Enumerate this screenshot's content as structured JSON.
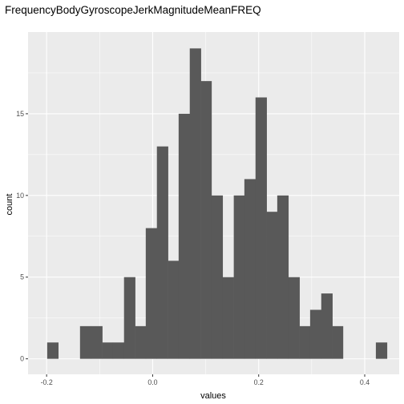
{
  "chart_data": {
    "type": "bar",
    "title": "FrequencyBodyGyroscopeJerkMagnitudeMeanFREQ",
    "xlabel": "values",
    "ylabel": "count",
    "xlim": [
      -0.235,
      0.465
    ],
    "ylim": [
      -0.95,
      20
    ],
    "xticks": [
      -0.2,
      0.0,
      0.2,
      0.4
    ],
    "xtick_labels": [
      "-0.2",
      "0.0",
      "0.2",
      "0.4"
    ],
    "yticks": [
      0,
      5,
      10,
      15
    ],
    "ytick_labels": [
      "0",
      "5",
      "10",
      "15"
    ],
    "grid": true,
    "bin_width": 0.0207,
    "bins": [
      {
        "x0": -0.199,
        "x1": -0.178,
        "count": 1
      },
      {
        "x0": -0.178,
        "x1": -0.157,
        "count": 0
      },
      {
        "x0": -0.157,
        "x1": -0.137,
        "count": 0
      },
      {
        "x0": -0.137,
        "x1": -0.116,
        "count": 2
      },
      {
        "x0": -0.116,
        "x1": -0.095,
        "count": 2
      },
      {
        "x0": -0.095,
        "x1": -0.075,
        "count": 1
      },
      {
        "x0": -0.075,
        "x1": -0.054,
        "count": 1
      },
      {
        "x0": -0.054,
        "x1": -0.033,
        "count": 5
      },
      {
        "x0": -0.033,
        "x1": -0.013,
        "count": 2
      },
      {
        "x0": -0.013,
        "x1": 0.008,
        "count": 8
      },
      {
        "x0": 0.008,
        "x1": 0.029,
        "count": 13
      },
      {
        "x0": 0.029,
        "x1": 0.049,
        "count": 6
      },
      {
        "x0": 0.049,
        "x1": 0.07,
        "count": 15
      },
      {
        "x0": 0.07,
        "x1": 0.091,
        "count": 19
      },
      {
        "x0": 0.091,
        "x1": 0.111,
        "count": 17
      },
      {
        "x0": 0.111,
        "x1": 0.132,
        "count": 10
      },
      {
        "x0": 0.132,
        "x1": 0.153,
        "count": 5
      },
      {
        "x0": 0.153,
        "x1": 0.173,
        "count": 10
      },
      {
        "x0": 0.173,
        "x1": 0.194,
        "count": 11
      },
      {
        "x0": 0.194,
        "x1": 0.215,
        "count": 16
      },
      {
        "x0": 0.215,
        "x1": 0.235,
        "count": 9
      },
      {
        "x0": 0.235,
        "x1": 0.256,
        "count": 10
      },
      {
        "x0": 0.256,
        "x1": 0.277,
        "count": 5
      },
      {
        "x0": 0.277,
        "x1": 0.297,
        "count": 2
      },
      {
        "x0": 0.297,
        "x1": 0.318,
        "count": 3
      },
      {
        "x0": 0.318,
        "x1": 0.339,
        "count": 4
      },
      {
        "x0": 0.339,
        "x1": 0.359,
        "count": 2
      },
      {
        "x0": 0.359,
        "x1": 0.38,
        "count": 0
      },
      {
        "x0": 0.38,
        "x1": 0.401,
        "count": 0
      },
      {
        "x0": 0.401,
        "x1": 0.421,
        "count": 0
      },
      {
        "x0": 0.421,
        "x1": 0.442,
        "count": 1
      }
    ],
    "colors": {
      "panel": "#ebebeb",
      "grid_major": "#ffffff",
      "bar": "#595959",
      "tick": "#333333"
    }
  }
}
